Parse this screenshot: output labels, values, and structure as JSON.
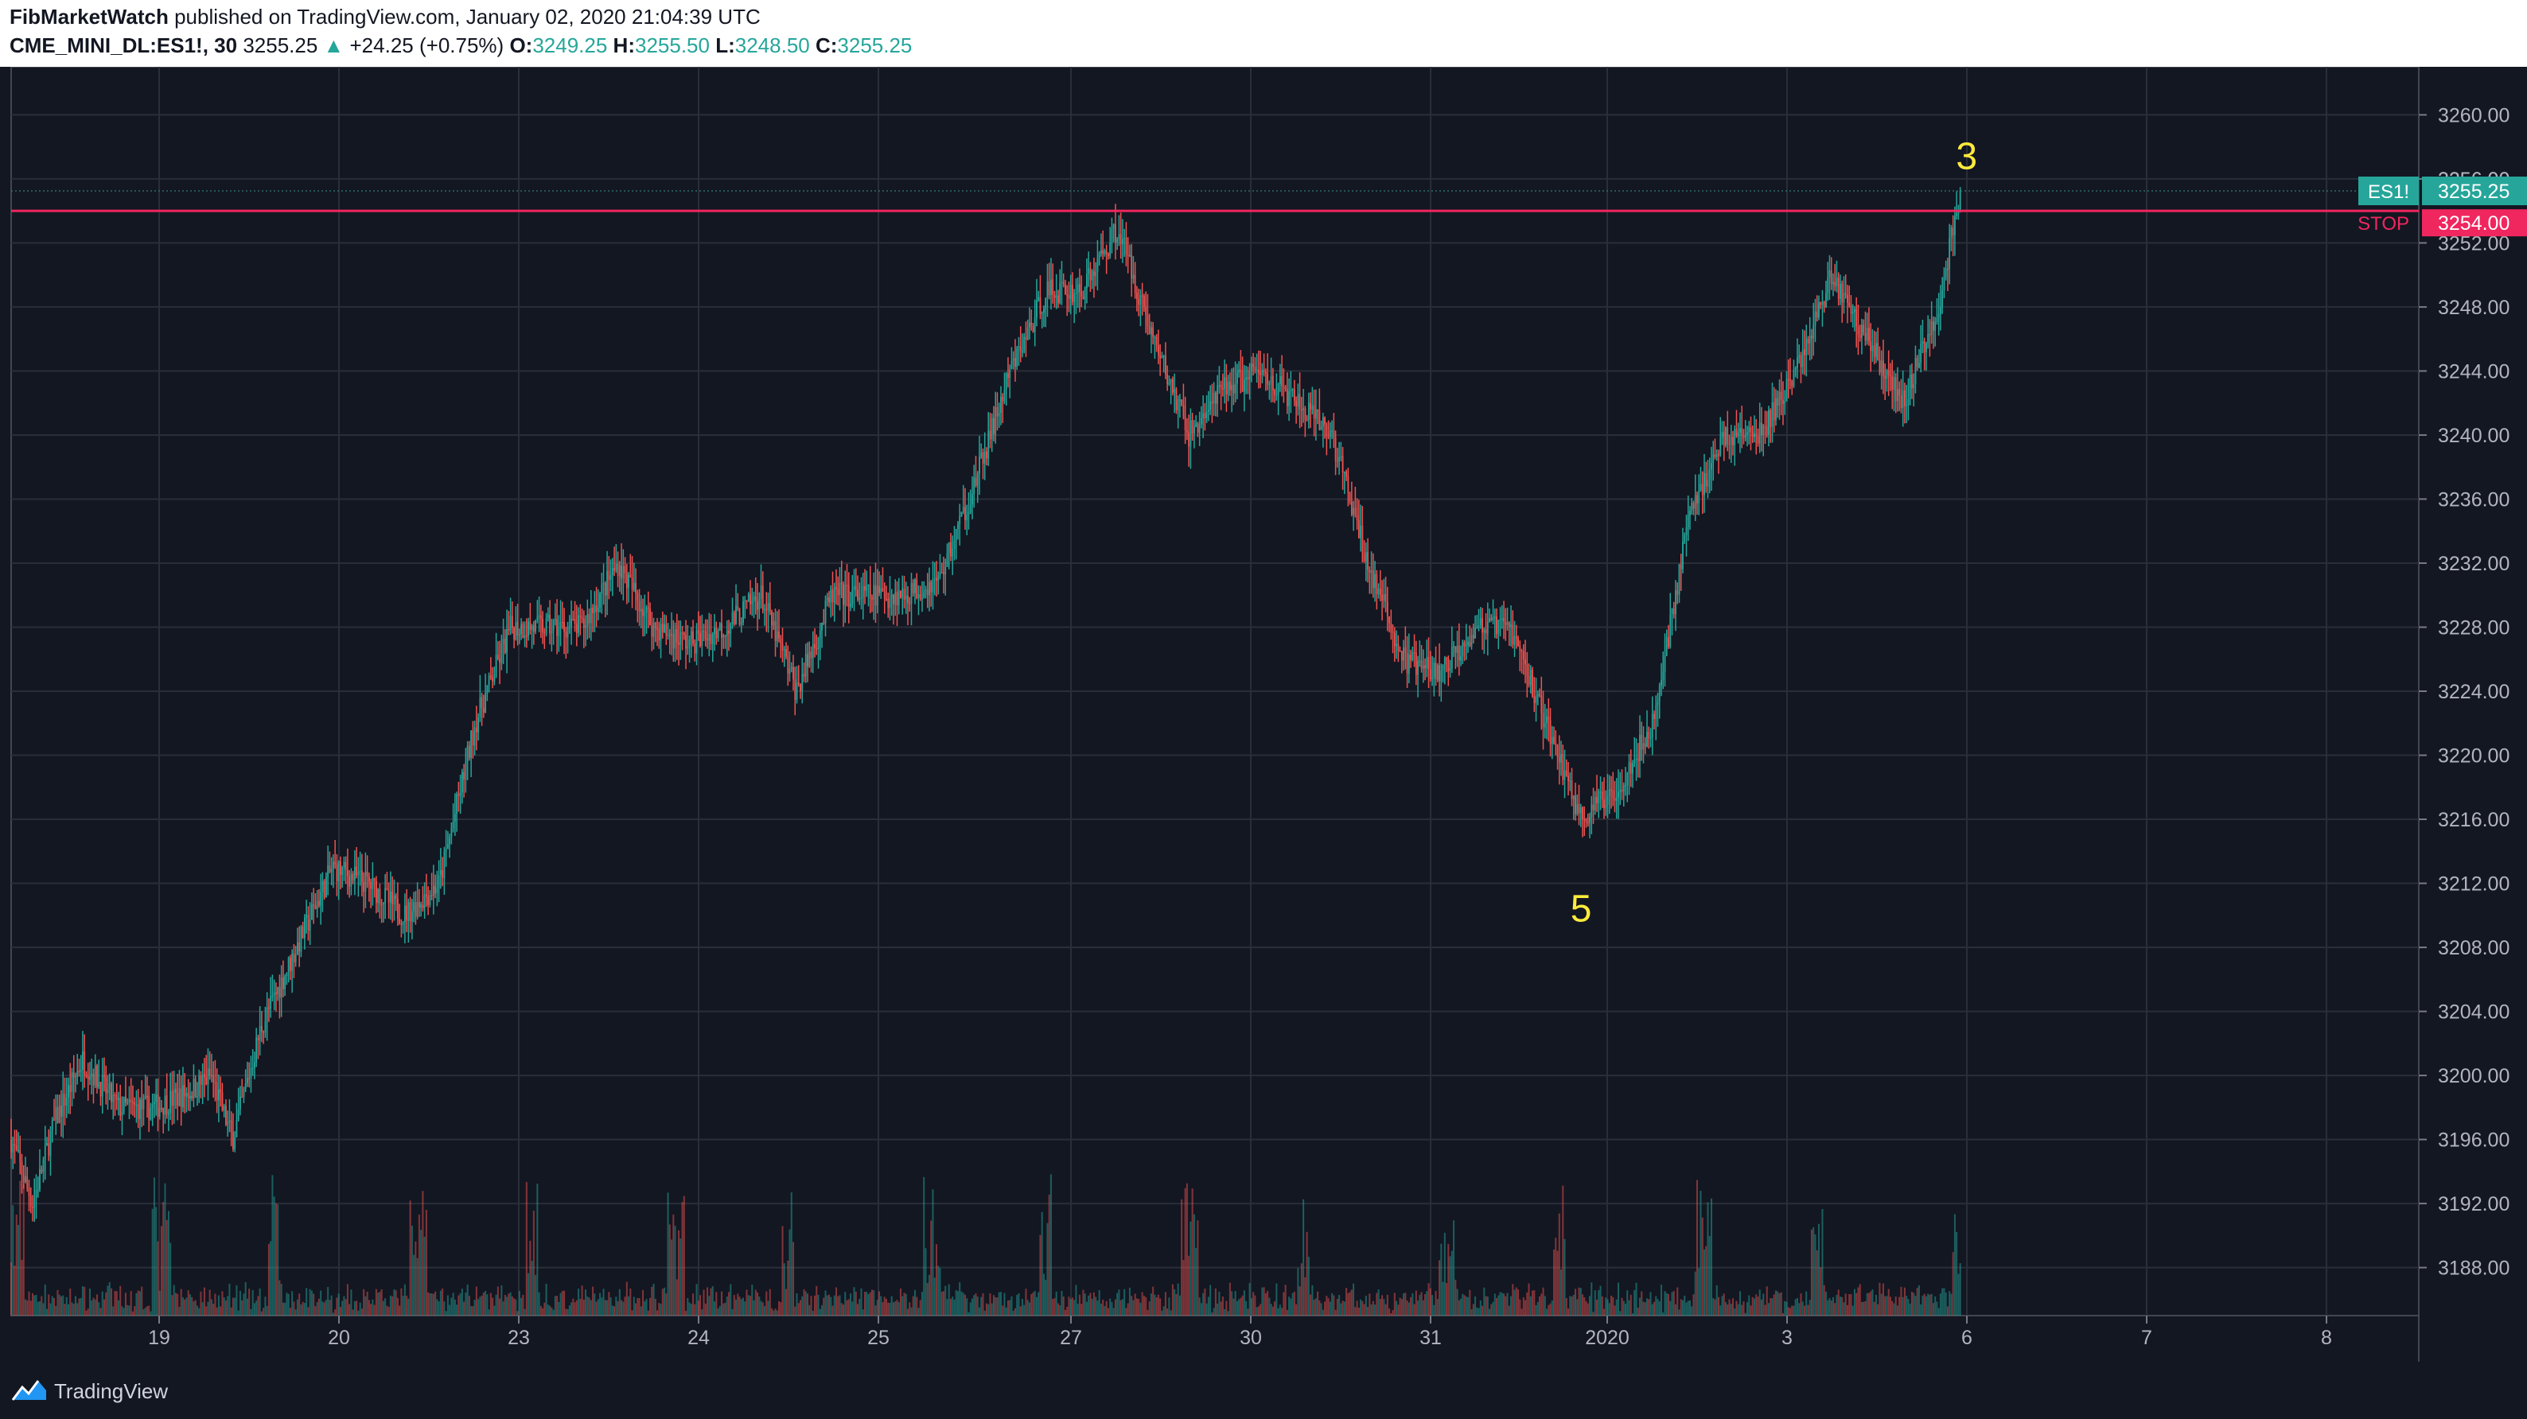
{
  "header": {
    "author": "FibMarketWatch",
    "published": " published on TradingView.com, January 02, 2020 21:04:39 UTC",
    "symbol": "CME_MINI_DL:ES1!, 30",
    "last": "3255.25",
    "change": "+24.25 (+0.75%)",
    "open_label": "O:",
    "open": "3249.25",
    "high_label": "H:",
    "high": "3255.50",
    "low_label": "L:",
    "low": "3248.50",
    "close_label": "C:",
    "close": "3255.25"
  },
  "footer": {
    "brand": "TradingView"
  },
  "colors": {
    "background": "#131722",
    "up": "#26a69a",
    "down": "#ef5350",
    "stop_line": "#f0265f",
    "annotation": "#ffeb3b",
    "grid": "#2a2e39"
  },
  "chart_data": {
    "type": "candlestick",
    "title": "",
    "xlabel": "",
    "ylabel": "",
    "ylim": [
      3185,
      3263
    ],
    "y_ticks": [
      "3260.00",
      "3256.00",
      "3252.00",
      "3248.00",
      "3244.00",
      "3240.00",
      "3236.00",
      "3232.00",
      "3228.00",
      "3224.00",
      "3220.00",
      "3216.00",
      "3212.00",
      "3208.00",
      "3204.00",
      "3200.00",
      "3196.00",
      "3192.00",
      "3188.00"
    ],
    "x_ticks": [
      "19",
      "20",
      "23",
      "24",
      "25",
      "27",
      "30",
      "31",
      "2020",
      "3",
      "6",
      "7",
      "8"
    ],
    "price_path": [
      {
        "t": 0.0,
        "p": 3196
      },
      {
        "t": 0.6,
        "p": 3192
      },
      {
        "t": 1.2,
        "p": 3197
      },
      {
        "t": 2.0,
        "p": 3201
      },
      {
        "t": 3.0,
        "p": 3198
      },
      {
        "t": 4.0,
        "p": 3198
      },
      {
        "t": 5.0,
        "p": 3199
      },
      {
        "t": 5.6,
        "p": 3200
      },
      {
        "t": 6.2,
        "p": 3196
      },
      {
        "t": 7.0,
        "p": 3203
      },
      {
        "t": 8.0,
        "p": 3208
      },
      {
        "t": 9.0,
        "p": 3213
      },
      {
        "t": 10.0,
        "p": 3212
      },
      {
        "t": 11.0,
        "p": 3210
      },
      {
        "t": 12.0,
        "p": 3212
      },
      {
        "t": 13.0,
        "p": 3222
      },
      {
        "t": 14.0,
        "p": 3228
      },
      {
        "t": 15.0,
        "p": 3228
      },
      {
        "t": 16.0,
        "p": 3228
      },
      {
        "t": 17.0,
        "p": 3232
      },
      {
        "t": 18.0,
        "p": 3228
      },
      {
        "t": 19.0,
        "p": 3227
      },
      {
        "t": 20.0,
        "p": 3228
      },
      {
        "t": 21.0,
        "p": 3230
      },
      {
        "t": 22.0,
        "p": 3224
      },
      {
        "t": 23.0,
        "p": 3230
      },
      {
        "t": 24.0,
        "p": 3230
      },
      {
        "t": 25.0,
        "p": 3230
      },
      {
        "t": 26.0,
        "p": 3231
      },
      {
        "t": 27.0,
        "p": 3237
      },
      {
        "t": 28.0,
        "p": 3244
      },
      {
        "t": 29.0,
        "p": 3249
      },
      {
        "t": 30.0,
        "p": 3249
      },
      {
        "t": 31.0,
        "p": 3253
      },
      {
        "t": 32.0,
        "p": 3246
      },
      {
        "t": 33.0,
        "p": 3240
      },
      {
        "t": 34.0,
        "p": 3243
      },
      {
        "t": 35.0,
        "p": 3244
      },
      {
        "t": 36.0,
        "p": 3242
      },
      {
        "t": 37.0,
        "p": 3240
      },
      {
        "t": 38.0,
        "p": 3232
      },
      {
        "t": 39.0,
        "p": 3226
      },
      {
        "t": 40.0,
        "p": 3225
      },
      {
        "t": 41.0,
        "p": 3228
      },
      {
        "t": 42.0,
        "p": 3228
      },
      {
        "t": 43.0,
        "p": 3222
      },
      {
        "t": 44.0,
        "p": 3216
      },
      {
        "t": 45.0,
        "p": 3218
      },
      {
        "t": 46.0,
        "p": 3222
      },
      {
        "t": 47.0,
        "p": 3235
      },
      {
        "t": 48.0,
        "p": 3240
      },
      {
        "t": 49.0,
        "p": 3240
      },
      {
        "t": 50.0,
        "p": 3244
      },
      {
        "t": 51.0,
        "p": 3250
      },
      {
        "t": 52.0,
        "p": 3246
      },
      {
        "t": 53.0,
        "p": 3242
      },
      {
        "t": 54.0,
        "p": 3248
      },
      {
        "t": 54.6,
        "p": 3255.25
      }
    ],
    "stop_level": 3254,
    "stop_label": "STOP",
    "stop_value": "3254.00",
    "last_label": "ES1!",
    "last_value": "3255.25",
    "hidden_tick": "3256.00",
    "annotations": [
      {
        "text": "3",
        "price": 3257.5,
        "t": 54.6
      },
      {
        "text": "5",
        "price": 3210.5,
        "t": 43.8
      }
    ]
  }
}
